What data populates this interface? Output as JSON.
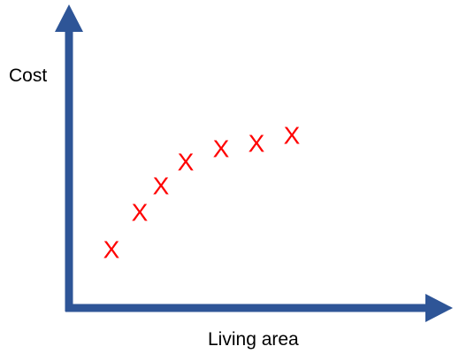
{
  "chart_data": {
    "type": "scatter",
    "title": "",
    "xlabel": "Living area",
    "ylabel": "Cost",
    "marker_symbol": "X",
    "marker_color": "#ff0000",
    "axis_color": "#2e5597",
    "grid": false,
    "legend": "none",
    "x_ticks": false,
    "y_ticks": false,
    "xlim": [
      0,
      10
    ],
    "ylim": [
      0,
      10
    ],
    "points": [
      {
        "x": 1.2,
        "y": 2.2
      },
      {
        "x": 2.0,
        "y": 3.6
      },
      {
        "x": 2.6,
        "y": 4.6
      },
      {
        "x": 3.3,
        "y": 5.5
      },
      {
        "x": 4.3,
        "y": 6.0
      },
      {
        "x": 5.3,
        "y": 6.2
      },
      {
        "x": 6.3,
        "y": 6.5
      }
    ]
  }
}
